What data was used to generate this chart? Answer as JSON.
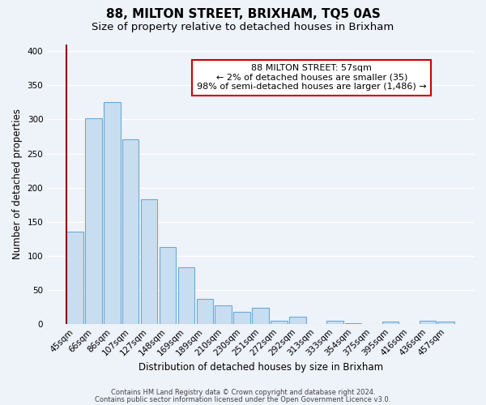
{
  "title": "88, MILTON STREET, BRIXHAM, TQ5 0AS",
  "subtitle": "Size of property relative to detached houses in Brixham",
  "xlabel": "Distribution of detached houses by size in Brixham",
  "ylabel": "Number of detached properties",
  "categories": [
    "45sqm",
    "66sqm",
    "86sqm",
    "107sqm",
    "127sqm",
    "148sqm",
    "169sqm",
    "189sqm",
    "210sqm",
    "230sqm",
    "251sqm",
    "272sqm",
    "292sqm",
    "313sqm",
    "333sqm",
    "354sqm",
    "375sqm",
    "395sqm",
    "416sqm",
    "436sqm",
    "457sqm"
  ],
  "values": [
    135,
    302,
    325,
    271,
    183,
    113,
    83,
    37,
    27,
    17,
    24,
    4,
    10,
    0,
    5,
    1,
    0,
    3,
    0,
    4,
    3
  ],
  "bar_color": "#c9ddf0",
  "bar_edge_color": "#6aaad4",
  "highlight_bar_index": 0,
  "highlight_left_line_color": "#8b0000",
  "annotation_text_line1": "88 MILTON STREET: 57sqm",
  "annotation_text_line2": "← 2% of detached houses are smaller (35)",
  "annotation_text_line3": "98% of semi-detached houses are larger (1,486) →",
  "annotation_box_edge_color": "#cc0000",
  "ylim": [
    0,
    410
  ],
  "yticks": [
    0,
    50,
    100,
    150,
    200,
    250,
    300,
    350,
    400
  ],
  "footer1": "Contains HM Land Registry data © Crown copyright and database right 2024.",
  "footer2": "Contains public sector information licensed under the Open Government Licence v3.0.",
  "background_color": "#eef2f9",
  "grid_color": "#ffffff",
  "title_fontsize": 11,
  "subtitle_fontsize": 9.5,
  "tick_fontsize": 7.5,
  "ylabel_fontsize": 8.5,
  "xlabel_fontsize": 8.5,
  "annotation_fontsize": 8,
  "footer_fontsize": 6
}
